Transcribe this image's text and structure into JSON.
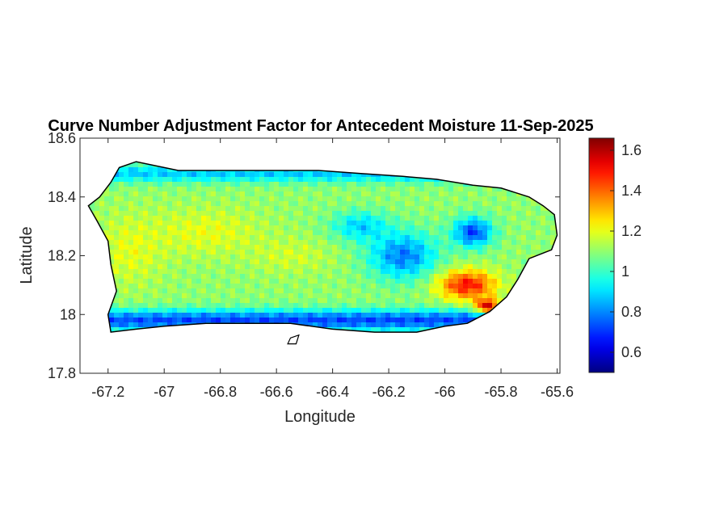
{
  "chart_data": {
    "type": "heatmap",
    "title": "Curve Number Adjustment Factor for Antecedent Moisture 11-Sep-2025",
    "xlabel": "Longitude",
    "ylabel": "Latitude",
    "xlim": [
      -67.3,
      -65.59
    ],
    "ylim": [
      17.8,
      18.6
    ],
    "xticks": [
      -67.2,
      -67,
      -66.8,
      -66.6,
      -66.4,
      -66.2,
      -66,
      -65.8,
      -65.6
    ],
    "xtick_labels": [
      "-67.2",
      "-67",
      "-66.8",
      "-66.6",
      "-66.4",
      "-66.2",
      "-66",
      "-65.8",
      "-65.6"
    ],
    "yticks": [
      17.8,
      18,
      18.2,
      18.4,
      18.6
    ],
    "ytick_labels": [
      "17.8",
      "18",
      "18.2",
      "18.4",
      "18.6"
    ],
    "colorbar": {
      "colormap": "jet",
      "clim": [
        0.5,
        1.66
      ],
      "ticks": [
        0.6,
        0.8,
        1,
        1.2,
        1.4,
        1.6
      ],
      "tick_labels": [
        "0.6",
        "0.8",
        "1",
        "1.2",
        "1.4",
        "1.6"
      ]
    },
    "grid": false,
    "background": "#ffffff",
    "region_outline": {
      "coast": [
        [
          -67.27,
          18.37
        ],
        [
          -67.23,
          18.4
        ],
        [
          -67.19,
          18.45
        ],
        [
          -67.16,
          18.5
        ],
        [
          -67.1,
          18.52
        ],
        [
          -66.95,
          18.49
        ],
        [
          -66.75,
          18.49
        ],
        [
          -66.6,
          18.49
        ],
        [
          -66.45,
          18.49
        ],
        [
          -66.3,
          18.48
        ],
        [
          -66.15,
          18.47
        ],
        [
          -66.03,
          18.46
        ],
        [
          -65.9,
          18.44
        ],
        [
          -65.8,
          18.43
        ],
        [
          -65.7,
          18.4
        ],
        [
          -65.65,
          18.37
        ],
        [
          -65.61,
          18.34
        ],
        [
          -65.6,
          18.27
        ],
        [
          -65.62,
          18.22
        ],
        [
          -65.7,
          18.19
        ],
        [
          -65.74,
          18.12
        ],
        [
          -65.78,
          18.06
        ],
        [
          -65.84,
          18.01
        ],
        [
          -65.92,
          17.97
        ],
        [
          -66.0,
          17.96
        ],
        [
          -66.1,
          17.94
        ],
        [
          -66.25,
          17.94
        ],
        [
          -66.4,
          17.95
        ],
        [
          -66.55,
          17.97
        ],
        [
          -66.7,
          17.97
        ],
        [
          -66.85,
          17.97
        ],
        [
          -67.0,
          17.96
        ],
        [
          -67.1,
          17.95
        ],
        [
          -67.19,
          17.94
        ],
        [
          -67.2,
          18.0
        ],
        [
          -67.17,
          18.08
        ],
        [
          -67.19,
          18.17
        ],
        [
          -67.2,
          18.25
        ],
        [
          -67.24,
          18.32
        ]
      ],
      "islands": [
        [
          [
            -66.55,
            17.92
          ],
          [
            -66.52,
            17.93
          ],
          [
            -66.53,
            17.9
          ],
          [
            -66.56,
            17.9
          ]
        ]
      ]
    },
    "field_features": [
      {
        "kind": "base",
        "value": 1.1
      },
      {
        "kind": "band",
        "lat": 18.48,
        "spread": 0.03,
        "value": 0.78,
        "weight": 0.7
      },
      {
        "kind": "band",
        "lat": 17.98,
        "spread": 0.035,
        "value": 0.66,
        "weight": 0.85
      },
      {
        "kind": "blob",
        "lon": -66.85,
        "lat": 18.28,
        "rx": 0.2,
        "ry": 0.08,
        "value": 1.24,
        "weight": 0.7
      },
      {
        "kind": "blob",
        "lon": -67.12,
        "lat": 18.22,
        "rx": 0.12,
        "ry": 0.12,
        "value": 1.22,
        "weight": 0.8
      },
      {
        "kind": "blob",
        "lon": -66.55,
        "lat": 18.2,
        "rx": 0.15,
        "ry": 0.06,
        "value": 1.2,
        "weight": 0.7
      },
      {
        "kind": "blob",
        "lon": -66.15,
        "lat": 18.2,
        "rx": 0.12,
        "ry": 0.08,
        "value": 0.68,
        "weight": 0.75
      },
      {
        "kind": "blob",
        "lon": -65.9,
        "lat": 18.28,
        "rx": 0.07,
        "ry": 0.05,
        "value": 0.62,
        "weight": 0.8
      },
      {
        "kind": "blob",
        "lon": -66.3,
        "lat": 18.3,
        "rx": 0.1,
        "ry": 0.05,
        "value": 0.74,
        "weight": 0.6
      },
      {
        "kind": "blob",
        "lon": -65.92,
        "lat": 18.1,
        "rx": 0.1,
        "ry": 0.05,
        "value": 1.52,
        "weight": 0.95
      },
      {
        "kind": "blob",
        "lon": -65.85,
        "lat": 18.03,
        "rx": 0.04,
        "ry": 0.025,
        "value": 1.62,
        "weight": 0.9
      },
      {
        "kind": "blob",
        "lon": -65.72,
        "lat": 18.35,
        "rx": 0.08,
        "ry": 0.06,
        "value": 1.1,
        "weight": 0.6
      }
    ]
  }
}
